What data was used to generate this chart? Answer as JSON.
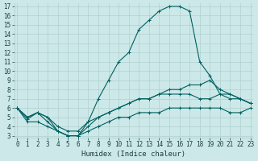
{
  "x": [
    0,
    1,
    2,
    3,
    4,
    5,
    6,
    7,
    8,
    9,
    10,
    11,
    12,
    13,
    14,
    15,
    16,
    17,
    18,
    19,
    20,
    21,
    22,
    23
  ],
  "line1": [
    6,
    5,
    5.5,
    5,
    3.5,
    3,
    3,
    4.5,
    7,
    9,
    11,
    12,
    14.5,
    15.5,
    16.5,
    17,
    17,
    16.5,
    11,
    9.5,
    7.5,
    7.5,
    7,
    6.5
  ],
  "line2": [
    6,
    4.8,
    5.5,
    4.5,
    3.5,
    3,
    3,
    4,
    5,
    5.5,
    6,
    6.5,
    7,
    7,
    7.5,
    7.5,
    7.5,
    7.5,
    7,
    7,
    7.5,
    7,
    7,
    6.5
  ],
  "line3": [
    6,
    5,
    5.5,
    5,
    4,
    3.5,
    3.5,
    4.5,
    5,
    5.5,
    6,
    6.5,
    7,
    7,
    7.5,
    8,
    8,
    8.5,
    8.5,
    9,
    8,
    7.5,
    7,
    6.5
  ],
  "line4": [
    6,
    4.5,
    4.5,
    4,
    3.5,
    3,
    3,
    3.5,
    4,
    4.5,
    5,
    5,
    5.5,
    5.5,
    5.5,
    6,
    6,
    6,
    6,
    6,
    6,
    5.5,
    5.5,
    6
  ],
  "bg_color": "#cce8e8",
  "line_color": "#006060",
  "xlabel": "Humidex (Indice chaleur)",
  "ylim_min": 3,
  "ylim_max": 17,
  "xlim_min": 0,
  "xlim_max": 23,
  "yticks": [
    3,
    4,
    5,
    6,
    7,
    8,
    9,
    10,
    11,
    12,
    13,
    14,
    15,
    16,
    17
  ],
  "xticks": [
    0,
    1,
    2,
    3,
    4,
    5,
    6,
    7,
    8,
    9,
    10,
    11,
    12,
    13,
    14,
    15,
    16,
    17,
    18,
    19,
    20,
    21,
    22,
    23
  ],
  "grid_color": "#b0d0d0",
  "tick_fontsize": 5.5,
  "xlabel_fontsize": 6.5
}
